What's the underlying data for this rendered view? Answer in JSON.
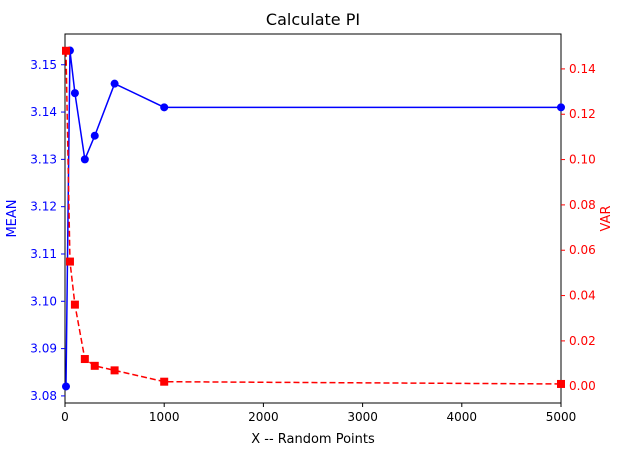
{
  "chart_data": {
    "type": "line",
    "title": "Calculate PI",
    "xlabel": "X -- Random Points",
    "x": [
      10,
      50,
      100,
      200,
      300,
      500,
      1000,
      5000
    ],
    "xlim": [
      0,
      5000
    ],
    "xticks": [
      0,
      1000,
      2000,
      3000,
      4000,
      5000
    ],
    "y_left": {
      "label": "MEAN",
      "color": "#0000ff",
      "ylim": [
        3.0785,
        3.1565
      ],
      "ticks": [
        3.08,
        3.09,
        3.1,
        3.11,
        3.12,
        3.13,
        3.14,
        3.15
      ],
      "tick_labels": [
        "3.08",
        "3.09",
        "3.10",
        "3.11",
        "3.12",
        "3.13",
        "3.14",
        "3.15"
      ]
    },
    "y_right": {
      "label": "VAR",
      "color": "#ff0000",
      "ylim": [
        -0.0074,
        0.1554
      ],
      "ticks": [
        0.0,
        0.02,
        0.04,
        0.06,
        0.08,
        0.1,
        0.12,
        0.14
      ],
      "tick_labels": [
        "0.00",
        "0.02",
        "0.04",
        "0.06",
        "0.08",
        "0.10",
        "0.12",
        "0.14"
      ]
    },
    "series": [
      {
        "axis": "left",
        "color": "#0000ff",
        "line": "solid",
        "marker": "circle",
        "values": [
          3.082,
          3.153,
          3.144,
          3.13,
          3.135,
          3.146,
          3.141,
          3.141
        ]
      },
      {
        "axis": "right",
        "color": "#ff0000",
        "line": "dashed",
        "marker": "square",
        "values": [
          0.148,
          0.055,
          0.036,
          0.012,
          0.009,
          0.007,
          0.002,
          0.001
        ]
      }
    ],
    "grid": false,
    "legend": "none"
  }
}
